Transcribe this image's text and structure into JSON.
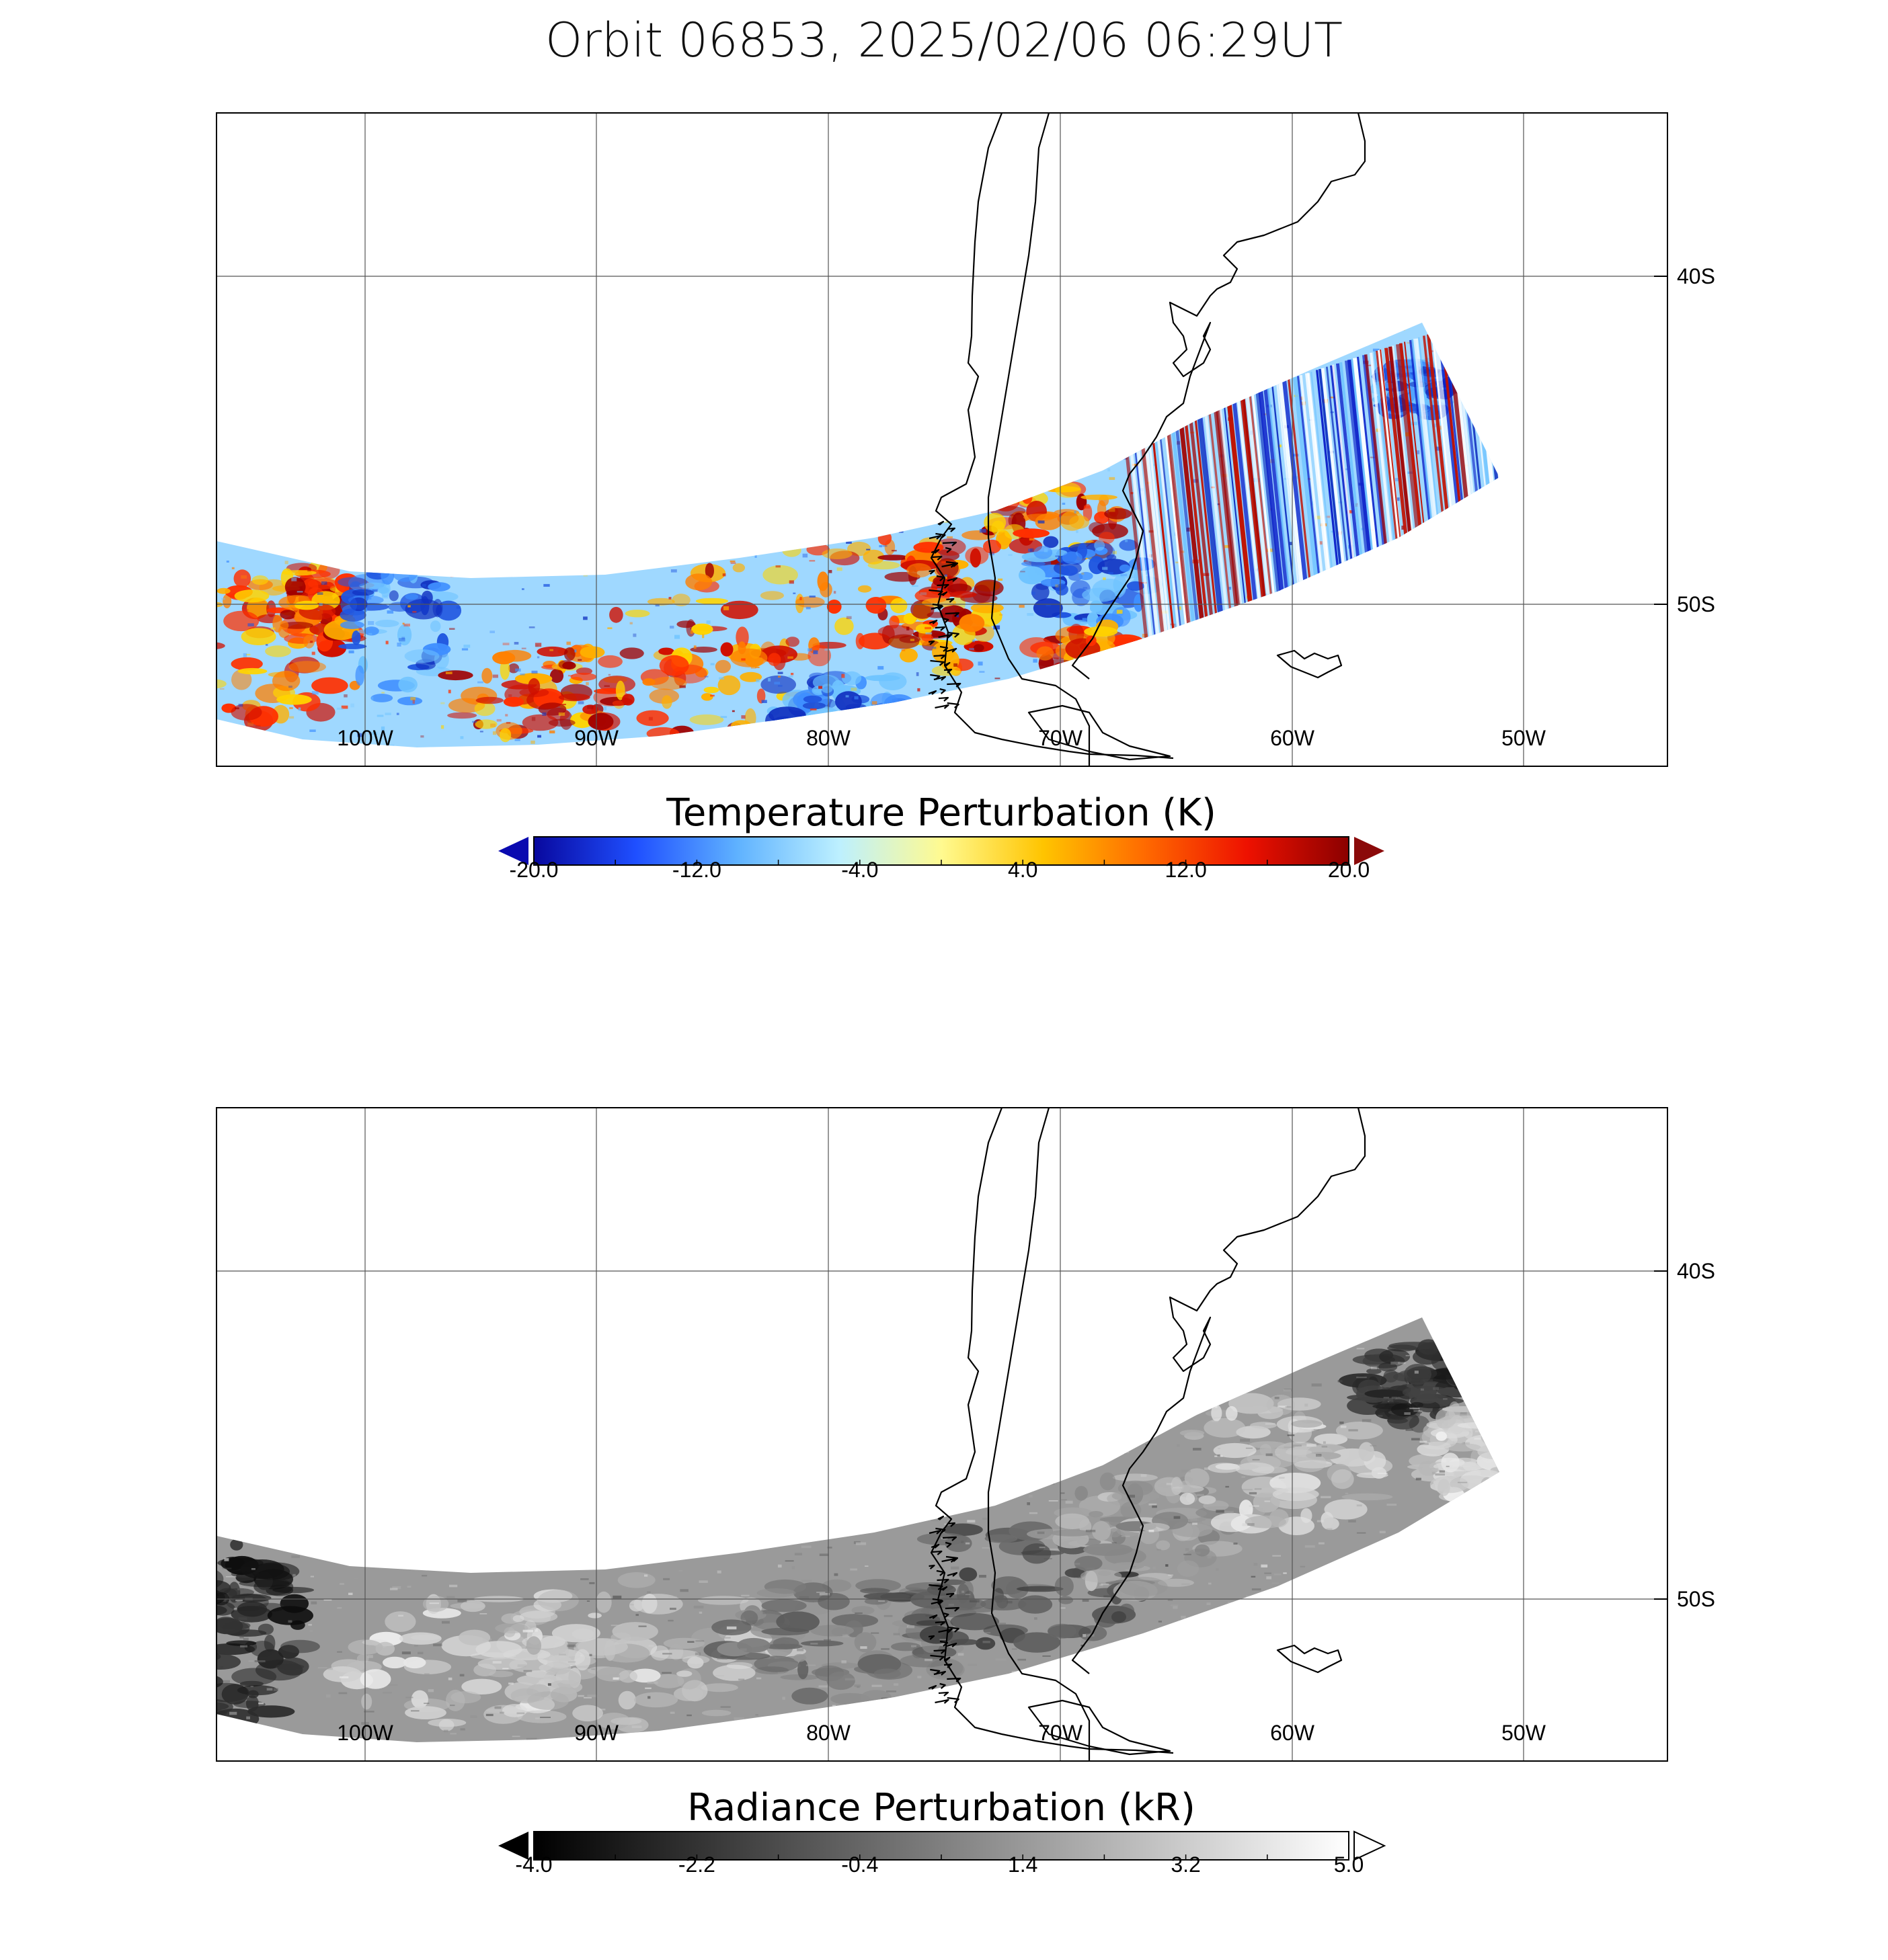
{
  "title": "Orbit 06853, 2025/02/06 06:29UT",
  "panels": [
    {
      "id": "temperature",
      "colorbar": {
        "title": "Temperature Perturbation (K)",
        "min": -20.0,
        "max": 20.0,
        "ticks": [
          "-20.0",
          "-12.0",
          "-4.0",
          "4.0",
          "12.0",
          "20.0"
        ],
        "colormap": [
          "#08089e",
          "#1f4fff",
          "#5fb2ff",
          "#bdf0ff",
          "#fffa90",
          "#ffc400",
          "#ff6a00",
          "#ee1100",
          "#8b0000"
        ],
        "extend_low_color": "#0a0ab0",
        "extend_high_color": "#8b0a0a"
      },
      "lon_labels": [
        "100W",
        "90W",
        "80W",
        "70W",
        "60W",
        "50W"
      ],
      "lat_labels": [
        "40S",
        "50S"
      ]
    },
    {
      "id": "radiance",
      "colorbar": {
        "title": "Radiance Perturbation (kR)",
        "min": -4.0,
        "max": 5.0,
        "ticks": [
          "-4.0",
          "-2.2",
          "-0.4",
          "1.4",
          "3.2",
          "5.0"
        ],
        "colormap": [
          "#000000",
          "#ffffff"
        ],
        "extend_low_color": "#000000",
        "extend_high_color": "#ffffff"
      },
      "lon_labels": [
        "100W",
        "90W",
        "80W",
        "70W",
        "60W",
        "50W"
      ],
      "lat_labels": [
        "40S",
        "50S"
      ]
    }
  ]
}
